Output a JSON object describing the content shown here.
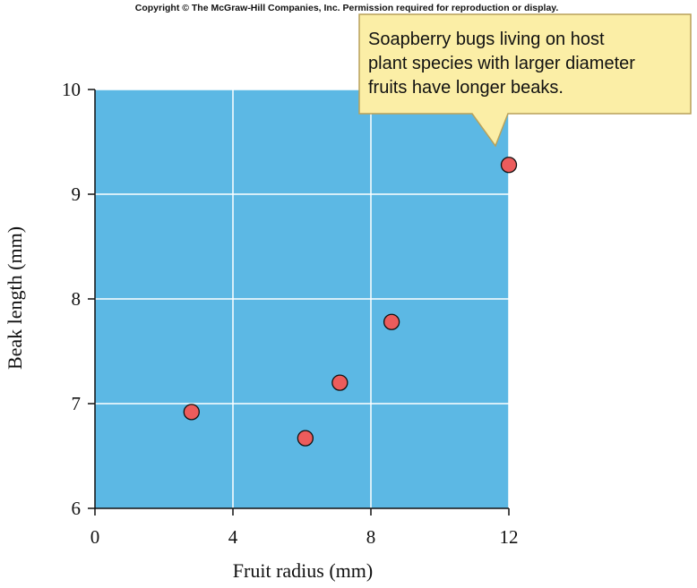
{
  "copyright": "Copyright © The McGraw-Hill Companies, Inc. Permission required for reproduction or display.",
  "callout": {
    "lines": [
      "Soapberry bugs living on host",
      "plant species with larger diameter",
      "fruits have longer beaks."
    ]
  },
  "colors": {
    "plot_background": "#5cb8e4",
    "point_fill": "#ec5c5c",
    "callout_fill": "#fbeea6",
    "callout_border": "#b8a15a"
  },
  "chart_data": {
    "type": "scatter",
    "title": "",
    "xlabel": "Fruit radius (mm)",
    "ylabel": "Beak length (mm)",
    "xlim": [
      0,
      12
    ],
    "ylim": [
      6,
      10
    ],
    "xticks": [
      "0",
      "4",
      "8",
      "12"
    ],
    "yticks": [
      "6",
      "7",
      "8",
      "9",
      "10"
    ],
    "grid": true,
    "points": [
      {
        "x": 2.8,
        "y": 6.92
      },
      {
        "x": 6.1,
        "y": 6.67
      },
      {
        "x": 7.1,
        "y": 7.2
      },
      {
        "x": 8.6,
        "y": 7.78
      },
      {
        "x": 12.0,
        "y": 9.28
      }
    ]
  }
}
